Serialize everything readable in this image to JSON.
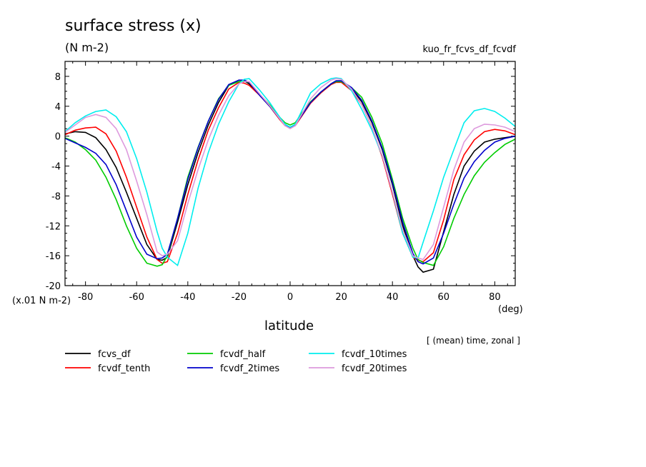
{
  "chart_data": {
    "type": "line",
    "title": "surface stress (x)",
    "units": "(N m-2)",
    "experiment": "kuo_fr_fcvs_df_fcvdf",
    "ylabel_scale": "(x.01 N m-2)",
    "xlabel": "latitude",
    "xunit": "(deg)",
    "note": "[ (mean) time, zonal ]",
    "xlim": [
      -88,
      88
    ],
    "ylim": [
      -20,
      10
    ],
    "xticks": [
      -80,
      -60,
      -40,
      -20,
      0,
      20,
      40,
      60,
      80
    ],
    "yticks": [
      8,
      4,
      0,
      -4,
      -8,
      -12,
      -16,
      -20
    ],
    "x": [
      -88,
      -84,
      -80,
      -76,
      -72,
      -68,
      -64,
      -60,
      -56,
      -52,
      -50,
      -48,
      -44,
      -40,
      -36,
      -32,
      -28,
      -24,
      -20,
      -18,
      -16,
      -12,
      -8,
      -4,
      -2,
      0,
      2,
      4,
      8,
      12,
      16,
      18,
      20,
      24,
      28,
      32,
      36,
      40,
      44,
      48,
      50,
      52,
      56,
      60,
      64,
      68,
      72,
      76,
      80,
      84,
      88
    ],
    "series": [
      {
        "name": "fcvs_df",
        "color": "#000000",
        "values": [
          0.3,
          0.6,
          0.5,
          -0.2,
          -1.8,
          -4.2,
          -7.5,
          -11,
          -14.5,
          -16.5,
          -16.6,
          -16.2,
          -11.5,
          -6.5,
          -2.2,
          1.5,
          4.5,
          6.8,
          7.5,
          7.4,
          7.0,
          5.5,
          4.0,
          2.2,
          1.5,
          1.2,
          1.5,
          2.5,
          4.5,
          5.8,
          7.0,
          7.4,
          7.4,
          6.4,
          4.6,
          1.8,
          -1.8,
          -6.5,
          -12,
          -16,
          -17.5,
          -18.2,
          -17.8,
          -12.8,
          -7.8,
          -4,
          -2,
          -0.8,
          -0.4,
          -0.2,
          0
        ]
      },
      {
        "name": "fcvdf_tenth",
        "color": "#ff0000",
        "values": [
          0.2,
          0.8,
          1.1,
          1.2,
          0.3,
          -2,
          -5.5,
          -9.5,
          -13.5,
          -16.5,
          -17,
          -16.8,
          -13,
          -7.8,
          -3.2,
          0.8,
          3.8,
          6.3,
          7.2,
          7.1,
          6.8,
          5.5,
          4.0,
          2.2,
          1.4,
          1.1,
          1.4,
          2.4,
          4.4,
          5.8,
          6.9,
          7.2,
          7.2,
          6.1,
          4.2,
          1.2,
          -2.8,
          -7.8,
          -13,
          -16.2,
          -16.6,
          -16.8,
          -15.6,
          -11.2,
          -5.8,
          -2.5,
          -0.5,
          0.6,
          0.9,
          0.7,
          0.2
        ]
      },
      {
        "name": "fcvdf_half",
        "color": "#00cc00",
        "values": [
          -0.2,
          -0.8,
          -1.8,
          -3.2,
          -5.5,
          -8.5,
          -12,
          -15,
          -17,
          -17.4,
          -17.2,
          -16,
          -11,
          -5.5,
          -1.5,
          2,
          5,
          6.8,
          7.3,
          7.4,
          7.2,
          5.6,
          4.2,
          2.5,
          1.8,
          1.5,
          1.8,
          2.8,
          4.6,
          5.9,
          7.0,
          7.3,
          7.3,
          6.5,
          5.2,
          2.5,
          -1,
          -5.8,
          -11,
          -15,
          -16.5,
          -16.9,
          -17.3,
          -14.8,
          -11,
          -7.8,
          -5.3,
          -3.5,
          -2.2,
          -1.1,
          -0.4
        ]
      },
      {
        "name": "fcvdf_2times",
        "color": "#0000cc",
        "values": [
          -0.3,
          -0.9,
          -1.5,
          -2.3,
          -3.8,
          -6.5,
          -10,
          -13.5,
          -15.8,
          -16.4,
          -16.3,
          -15.8,
          -11,
          -5.8,
          -1.6,
          2,
          4.9,
          6.9,
          7.5,
          7.5,
          7.2,
          5.5,
          4.0,
          2.3,
          1.5,
          1.2,
          1.5,
          2.5,
          4.5,
          5.9,
          7.0,
          7.4,
          7.4,
          6.5,
          4.8,
          2,
          -1.6,
          -6.2,
          -11.5,
          -15.7,
          -16.8,
          -17.1,
          -16.3,
          -13,
          -9.1,
          -5.6,
          -3.4,
          -1.9,
          -0.8,
          -0.3,
          0
        ]
      },
      {
        "name": "fcvdf_10times",
        "color": "#00eeee",
        "values": [
          0.6,
          1.8,
          2.7,
          3.3,
          3.5,
          2.6,
          0.6,
          -3,
          -7.5,
          -12.8,
          -15,
          -16.2,
          -17.3,
          -13,
          -7,
          -2.2,
          1.6,
          4.6,
          7,
          7.6,
          7.7,
          6.2,
          4.5,
          2.5,
          1.6,
          1.2,
          1.6,
          3,
          5.8,
          7,
          7.7,
          7.8,
          7.7,
          6.1,
          3.6,
          0.8,
          -2.6,
          -7.5,
          -13,
          -16.2,
          -16.3,
          -14.2,
          -10,
          -5.5,
          -1.8,
          1.8,
          3.4,
          3.7,
          3.3,
          2.4,
          1.3
        ]
      },
      {
        "name": "fcvdf_20times",
        "color": "#dd99dd",
        "values": [
          0.5,
          1.5,
          2.5,
          2.9,
          2.5,
          1,
          -1.8,
          -6,
          -10.5,
          -15.5,
          -16,
          -15.8,
          -14,
          -9,
          -4.5,
          -0.5,
          2.8,
          5.4,
          7,
          7.3,
          7.3,
          5.7,
          4.1,
          2.3,
          1.4,
          1.0,
          1.4,
          2.6,
          5,
          6.5,
          7.5,
          7.7,
          7.6,
          6.3,
          4.2,
          1.2,
          -2.6,
          -7.5,
          -12.5,
          -16,
          -16.3,
          -16.5,
          -14.5,
          -9.5,
          -4.5,
          -0.8,
          1,
          1.6,
          1.5,
          1.2,
          0.6
        ]
      }
    ],
    "legend_placement": "bottom-left"
  }
}
